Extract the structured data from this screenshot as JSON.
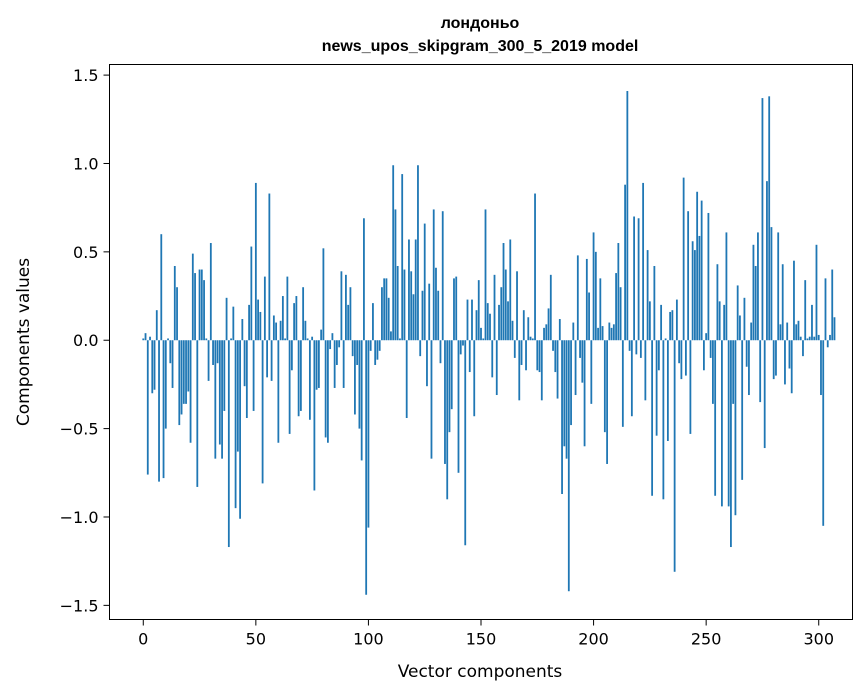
{
  "chart_data": {
    "type": "bar",
    "title_line1": "лондоньо",
    "title_line2": "news_upos_skipgram_300_5_2019 model",
    "xlabel": "Vector components",
    "ylabel": "Components values",
    "xlim": [
      -15,
      315
    ],
    "ylim": [
      -1.58,
      1.56
    ],
    "xticks": [
      0,
      50,
      100,
      150,
      200,
      250,
      300
    ],
    "yticks": [
      -1.5,
      -1.0,
      -0.5,
      0.0,
      0.5,
      1.0,
      1.5
    ],
    "ytick_labels": [
      "−1.5",
      "−1.0",
      "−0.5",
      "0.0",
      "0.5",
      "1.0",
      "1.5"
    ],
    "color": "#1f77b4",
    "values": [
      0.01,
      0.04,
      -0.76,
      0.02,
      -0.3,
      -0.28,
      0.17,
      -0.8,
      0.6,
      -0.78,
      -0.5,
      0.01,
      -0.13,
      -0.27,
      0.42,
      0.3,
      -0.48,
      -0.42,
      -0.36,
      -0.36,
      -0.29,
      -0.58,
      0.49,
      0.38,
      -0.83,
      0.4,
      0.4,
      0.34,
      0.01,
      -0.23,
      0.55,
      -0.14,
      -0.67,
      -0.13,
      -0.59,
      -0.67,
      -0.4,
      0.24,
      -1.17,
      0.01,
      0.19,
      -0.95,
      -0.63,
      -1.01,
      0.12,
      -0.26,
      -0.44,
      0.2,
      0.53,
      -0.4,
      0.89,
      0.23,
      0.16,
      -0.81,
      0.36,
      -0.21,
      0.83,
      -0.23,
      0.14,
      0.1,
      -0.58,
      0.11,
      0.25,
      0.01,
      0.36,
      -0.53,
      -0.17,
      0.21,
      0.25,
      -0.43,
      -0.4,
      0.3,
      0.11,
      0.01,
      -0.45,
      0.02,
      -0.85,
      -0.28,
      -0.27,
      0.06,
      0.52,
      -0.55,
      -0.58,
      -0.05,
      0.04,
      -0.27,
      -0.14,
      -0.04,
      0.39,
      -0.27,
      0.37,
      0.2,
      0.3,
      -0.09,
      -0.42,
      -0.14,
      -0.5,
      -0.68,
      0.69,
      -1.44,
      -1.06,
      -0.06,
      0.21,
      -0.14,
      -0.11,
      -0.06,
      0.3,
      0.35,
      0.35,
      0.24,
      0.05,
      0.99,
      0.74,
      0.42,
      0.01,
      0.94,
      0.4,
      -0.44,
      0.57,
      0.39,
      0.26,
      0.57,
      0.99,
      -0.09,
      0.28,
      0.66,
      -0.26,
      0.32,
      -0.67,
      0.74,
      0.41,
      0.28,
      -0.13,
      0.73,
      -0.7,
      -0.9,
      -0.52,
      -0.39,
      0.35,
      0.36,
      -0.75,
      -0.08,
      -0.03,
      -1.16,
      0.23,
      -0.18,
      0.23,
      -0.43,
      0.17,
      0.34,
      0.07,
      0.01,
      0.74,
      0.21,
      0.15,
      -0.21,
      0.37,
      -0.31,
      0.2,
      0.3,
      0.55,
      0.4,
      0.22,
      0.57,
      0.11,
      -0.1,
      0.39,
      -0.34,
      -0.14,
      0.17,
      -0.17,
      0.13,
      0.02,
      0.01,
      0.83,
      -0.17,
      -0.18,
      -0.34,
      0.07,
      0.09,
      0.18,
      0.37,
      -0.06,
      -0.18,
      -0.33,
      0.12,
      -0.87,
      -0.6,
      -0.67,
      -1.42,
      -0.48,
      0.1,
      -0.31,
      0.48,
      -0.1,
      -0.24,
      -0.6,
      0.46,
      0.27,
      -0.36,
      0.61,
      0.5,
      0.07,
      0.35,
      0.08,
      -0.52,
      -0.7,
      0.1,
      0.07,
      0.09,
      0.38,
      0.55,
      0.3,
      -0.49,
      0.88,
      1.41,
      -0.06,
      -0.43,
      0.7,
      -0.08,
      0.69,
      -0.1,
      0.89,
      -0.34,
      0.51,
      0.22,
      -0.88,
      0.42,
      -0.54,
      -0.17,
      0.2,
      -0.9,
      0.01,
      -0.57,
      0.16,
      0.17,
      -1.31,
      0.23,
      -0.13,
      -0.22,
      0.92,
      -0.2,
      0.73,
      -0.53,
      0.56,
      0.51,
      0.84,
      0.59,
      0.79,
      -0.17,
      0.04,
      0.72,
      -0.1,
      -0.36,
      -0.88,
      0.43,
      0.22,
      -0.94,
      0.2,
      0.61,
      -0.94,
      -1.17,
      -0.36,
      -0.99,
      0.31,
      0.14,
      -0.79,
      0.24,
      -0.15,
      -0.31,
      0.1,
      0.54,
      0.42,
      0.61,
      -0.35,
      1.37,
      -0.61,
      0.9,
      1.38,
      0.64,
      -0.22,
      -0.2,
      0.61,
      0.09,
      0.43,
      -0.25,
      0.1,
      -0.16,
      -0.3,
      0.45,
      0.09,
      0.11,
      0.02,
      -0.09,
      0.34,
      0.01,
      0.02,
      0.2,
      0.02,
      0.54,
      0.03,
      -0.31,
      -1.05,
      0.35,
      -0.04,
      0.03,
      0.4,
      0.13
    ]
  }
}
